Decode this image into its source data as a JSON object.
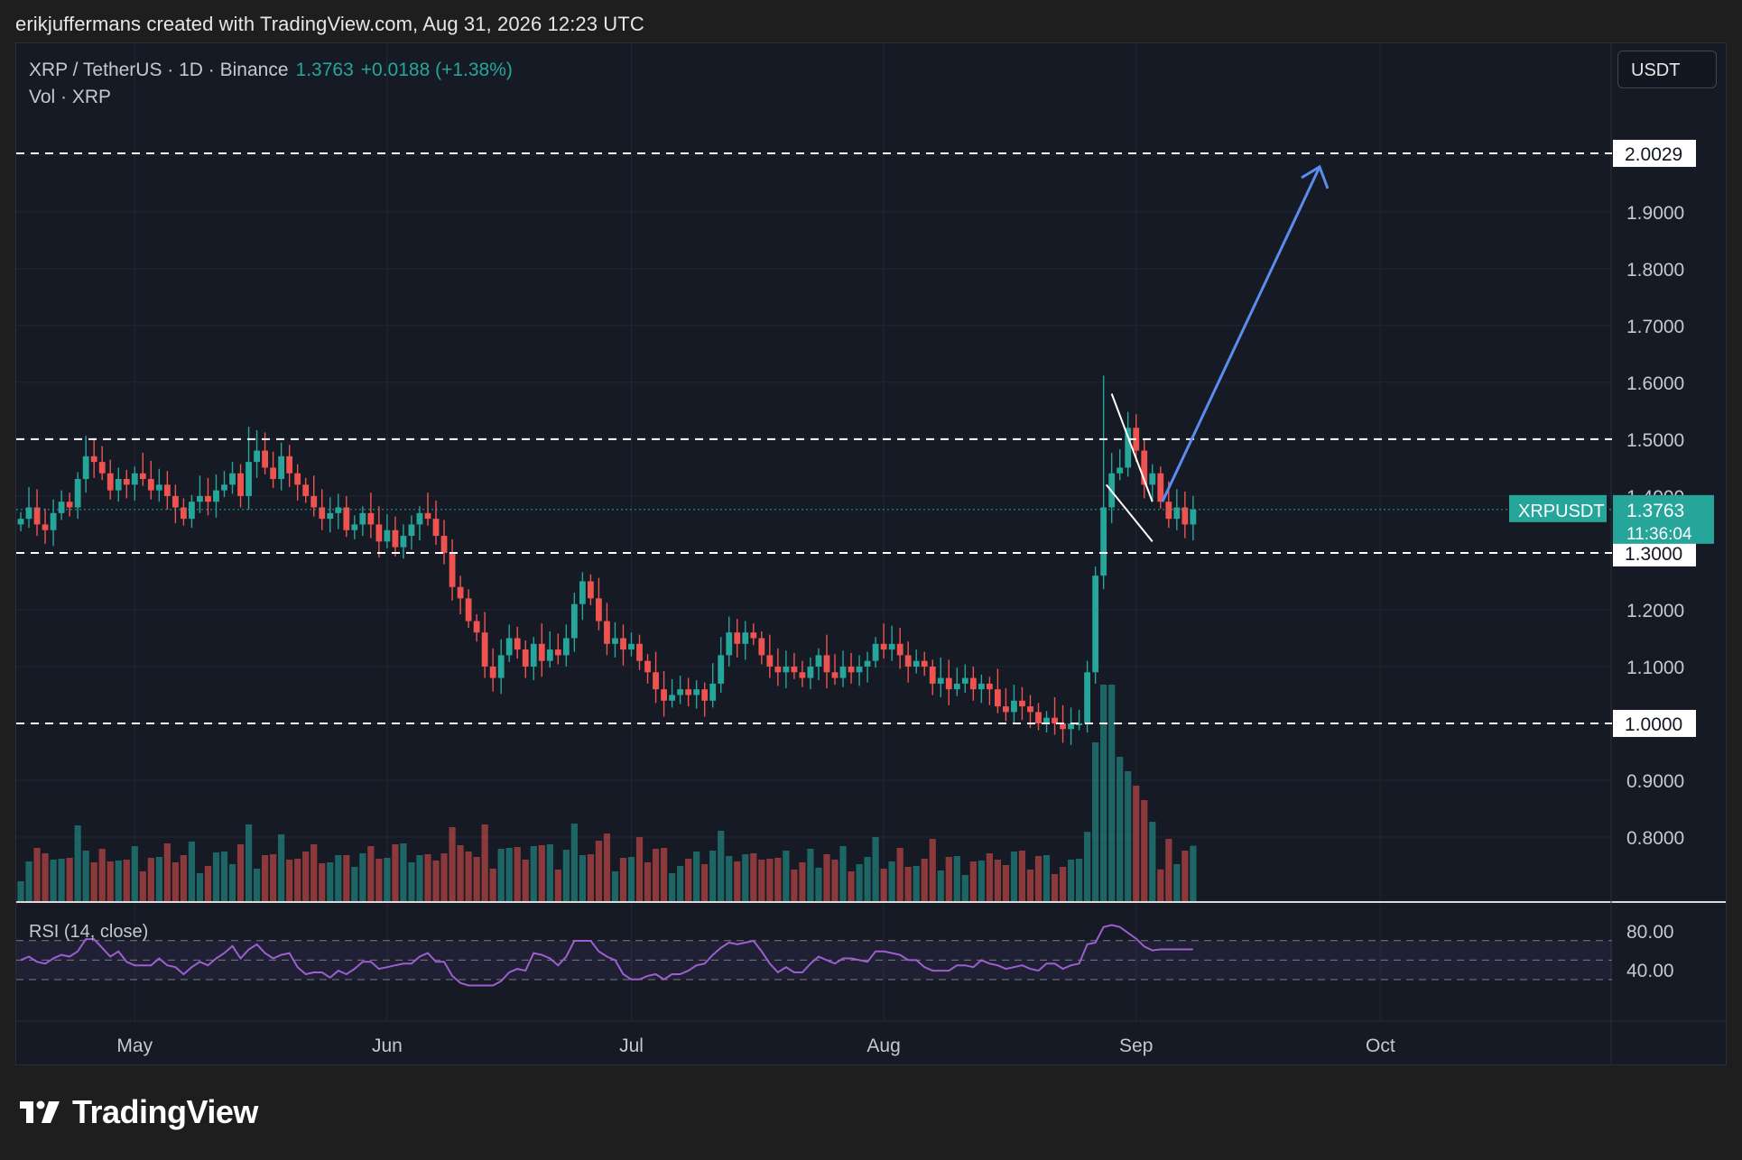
{
  "caption": "erikjuffermans created with TradingView.com, Aug 31, 2026 12:23 UTC",
  "legend": {
    "symbol": "XRP / TetherUS · 1D · Binance",
    "price": "1.3763",
    "change": "+0.0188 (+1.38%)",
    "volume_label": "Vol · XRP"
  },
  "currency_button": "USDT",
  "rsi_label": "RSI (14, close)",
  "brand": "TradingView",
  "colors": {
    "up": "#26a69a",
    "down": "#ef5350",
    "bg": "#161a25",
    "grid": "#232733",
    "arrow": "#5b8def",
    "rsi": "#9c5fd0"
  },
  "chart_data": {
    "type": "candlestick",
    "symbol": "XRP / TetherUS",
    "interval": "1D",
    "exchange": "Binance",
    "y_axis": {
      "min": 0.72,
      "max": 2.08,
      "ticks": [
        "0.8000",
        "0.9000",
        "1.0000",
        "1.1000",
        "1.2000",
        "1.3000",
        "1.4000",
        "1.5000",
        "1.6000",
        "1.7000",
        "1.8000",
        "1.9000",
        "2.0029"
      ]
    },
    "x_axis": {
      "ticks": [
        "May",
        "Jun",
        "Jul",
        "Aug",
        "Sep",
        "Oct"
      ]
    },
    "months_index": {
      "May": 14,
      "Jun": 45,
      "Jul": 75,
      "Aug": 106,
      "Sep": 137,
      "Oct": 167
    },
    "closes": [
      1.36,
      1.38,
      1.35,
      1.34,
      1.37,
      1.39,
      1.38,
      1.43,
      1.47,
      1.46,
      1.44,
      1.41,
      1.43,
      1.42,
      1.44,
      1.43,
      1.41,
      1.42,
      1.4,
      1.38,
      1.36,
      1.39,
      1.4,
      1.39,
      1.41,
      1.42,
      1.44,
      1.4,
      1.46,
      1.48,
      1.45,
      1.43,
      1.47,
      1.44,
      1.42,
      1.4,
      1.38,
      1.36,
      1.37,
      1.38,
      1.34,
      1.35,
      1.37,
      1.35,
      1.32,
      1.34,
      1.31,
      1.33,
      1.35,
      1.37,
      1.36,
      1.33,
      1.3,
      1.24,
      1.22,
      1.18,
      1.16,
      1.1,
      1.08,
      1.12,
      1.15,
      1.13,
      1.1,
      1.14,
      1.11,
      1.13,
      1.12,
      1.15,
      1.21,
      1.25,
      1.22,
      1.18,
      1.14,
      1.15,
      1.13,
      1.14,
      1.11,
      1.09,
      1.06,
      1.04,
      1.05,
      1.06,
      1.05,
      1.06,
      1.04,
      1.07,
      1.12,
      1.16,
      1.14,
      1.16,
      1.15,
      1.12,
      1.1,
      1.09,
      1.1,
      1.09,
      1.08,
      1.1,
      1.12,
      1.09,
      1.08,
      1.1,
      1.09,
      1.1,
      1.11,
      1.14,
      1.13,
      1.14,
      1.12,
      1.1,
      1.11,
      1.1,
      1.07,
      1.08,
      1.06,
      1.07,
      1.08,
      1.06,
      1.07,
      1.06,
      1.03,
      1.02,
      1.04,
      1.03,
      1.02,
      1.0,
      1.01,
      1.0,
      0.99,
      1.0,
      1.0,
      1.09,
      1.26,
      1.38,
      1.44,
      1.45,
      1.52,
      1.48,
      1.42,
      1.44,
      1.39,
      1.36,
      1.38,
      1.35,
      1.3763
    ],
    "rsi": {
      "upper": 70,
      "lower": 30,
      "middle": 50,
      "ticks": [
        "80.00",
        "40.00"
      ]
    },
    "levels": [
      "2.0029",
      "1.5001",
      "1.3000",
      "1.0000"
    ],
    "last_price_label": {
      "symbol": "XRPUSDT",
      "price": "1.3763",
      "countdown": "11:36:04"
    }
  }
}
